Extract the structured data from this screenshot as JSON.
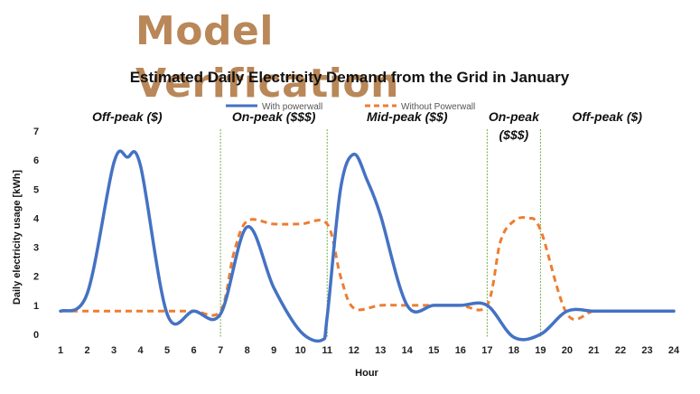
{
  "slide": {
    "title": "Model Verification"
  },
  "chart_data": {
    "type": "line",
    "title": "Estimated Daily Electricity Demand from the Grid in January",
    "xlabel": "Hour",
    "ylabel": "Daily electricity usage [kWh]",
    "xlim": [
      1,
      24
    ],
    "ylim": [
      0,
      7
    ],
    "x_ticks": [
      1,
      2,
      3,
      4,
      5,
      6,
      7,
      8,
      9,
      10,
      11,
      12,
      13,
      14,
      15,
      16,
      17,
      18,
      19,
      20,
      21,
      22,
      23,
      24
    ],
    "y_ticks": [
      0,
      1,
      2,
      3,
      4,
      5,
      6,
      7
    ],
    "grid": false,
    "legend_position": "top",
    "series": [
      {
        "name": "With powerwall",
        "style": "solid",
        "color": "#4472c4",
        "x": [
          1,
          2,
          3,
          3.5,
          4,
          5,
          6,
          7,
          8,
          9,
          10,
          10.8,
          11,
          11.5,
          12,
          12.5,
          13,
          14,
          15,
          16,
          17,
          18,
          19,
          20,
          21,
          22,
          23,
          24
        ],
        "values": [
          0.8,
          1.4,
          5.9,
          6.1,
          5.8,
          0.7,
          0.8,
          0.7,
          3.7,
          1.6,
          0.1,
          -0.2,
          0.6,
          5.0,
          6.2,
          5.3,
          4.1,
          1.0,
          1.0,
          1.0,
          1.0,
          -0.1,
          0.0,
          0.8,
          0.8,
          0.8,
          0.8,
          0.8
        ]
      },
      {
        "name": "Without Powerwall",
        "style": "dashed",
        "color": "#ed7d31",
        "x": [
          1,
          2,
          3,
          4,
          5,
          6,
          7,
          7.5,
          8,
          9,
          10,
          11,
          11.5,
          12,
          13,
          14,
          15,
          16,
          17,
          17.5,
          18,
          18.5,
          19,
          20,
          21,
          22,
          23,
          24
        ],
        "values": [
          0.8,
          0.8,
          0.8,
          0.8,
          0.8,
          0.8,
          0.8,
          2.8,
          3.9,
          3.8,
          3.8,
          3.8,
          2.0,
          0.9,
          1.0,
          1.0,
          1.0,
          1.0,
          1.0,
          3.2,
          3.9,
          4.0,
          3.6,
          0.7,
          0.8,
          0.8,
          0.8,
          0.8
        ]
      }
    ],
    "period_dividers": [
      7,
      11,
      17,
      19
    ],
    "annotations": [
      {
        "lines": [
          "Off-peak ($)"
        ],
        "x": 3.5,
        "y": 7.4
      },
      {
        "lines": [
          "On-peak ($$$)"
        ],
        "x": 9.0,
        "y": 7.4
      },
      {
        "lines": [
          "Mid-peak ($$)"
        ],
        "x": 14.0,
        "y": 7.4
      },
      {
        "lines": [
          "On-peak",
          "($$$)"
        ],
        "x": 18.0,
        "y": 7.4
      },
      {
        "lines": [
          "Off-peak ($)"
        ],
        "x": 21.5,
        "y": 7.4
      }
    ]
  }
}
